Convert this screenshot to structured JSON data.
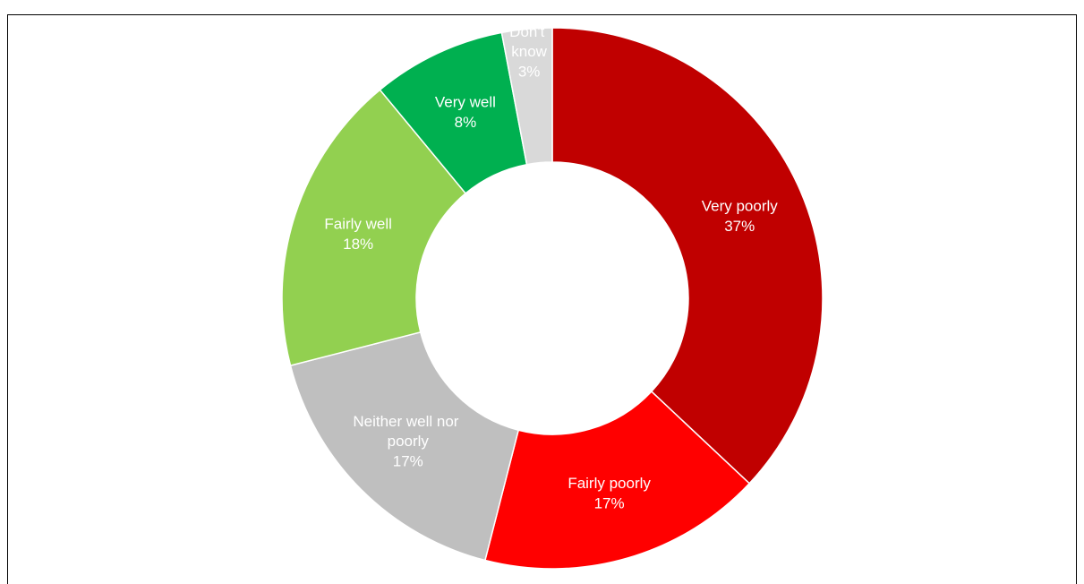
{
  "chart_data": {
    "type": "donut",
    "categories": [
      "Very poorly",
      "Fairly poorly",
      "Neither well nor poorly",
      "Fairly well",
      "Very well",
      "Don't know"
    ],
    "values": [
      37,
      17,
      17,
      18,
      8,
      3
    ],
    "value_labels": [
      "37%",
      "17%",
      "17%",
      "18%",
      "8%",
      "3%"
    ],
    "colors": [
      "#c00000",
      "#ff0000",
      "#bfbfbf",
      "#92d050",
      "#00b050",
      "#d9d9d9"
    ]
  }
}
